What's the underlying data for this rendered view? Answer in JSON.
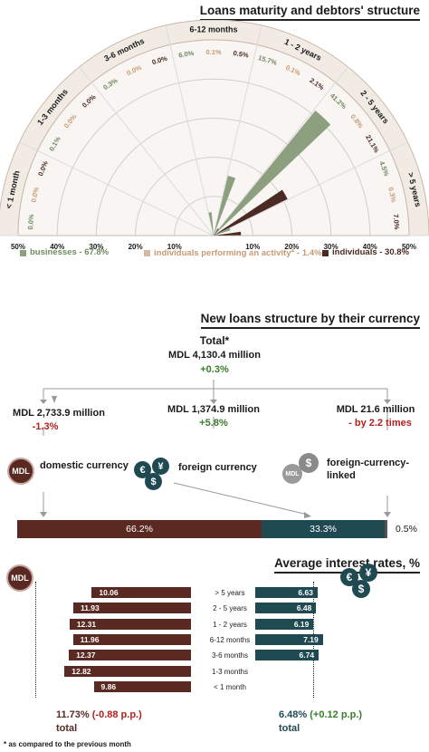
{
  "section1": {
    "title": "Loans maturity and debtors' structure",
    "legend": [
      {
        "label": "businesses - 67.8%",
        "color": "#8c9f7e"
      },
      {
        "label": "individuals performing an activity",
        "sup": "2",
        "suffix": " - 1.4%",
        "color": "#d7b79d"
      },
      {
        "label": "individuals - 30.8%",
        "color": "#4a2a22"
      }
    ]
  },
  "chart_data": [
    {
      "type": "polar-bar",
      "title": "Loans maturity and debtors' structure",
      "categories": [
        "< 1 month",
        "1-3 months",
        "3-6 months",
        "6-12 months",
        "1 - 2 years",
        "2 - 5 years",
        "> 5 years"
      ],
      "series": [
        {
          "name": "businesses",
          "values": [
            0.0,
            0.1,
            0.3,
            6.0,
            15.7,
            41.2,
            4.5
          ]
        },
        {
          "name": "individuals performing an activity",
          "values": [
            0.0,
            0.0,
            0.0,
            0.1,
            0.1,
            0.8,
            0.3
          ]
        },
        {
          "name": "individuals",
          "values": [
            0.0,
            0.0,
            0.0,
            0.5,
            2.1,
            21.1,
            7.0
          ]
        }
      ],
      "value_labels": [
        [
          "0.0%",
          "0.0%",
          "0.0%"
        ],
        [
          "0.1%",
          "0.0%",
          "0.0%"
        ],
        [
          "0.3%",
          "0.0%",
          "0.0%"
        ],
        [
          "6.0%",
          "0.1%",
          "0.5%"
        ],
        [
          "15.7%",
          "0.1%",
          "2.1%"
        ],
        [
          "41.2%",
          "0.8%",
          "21.1%"
        ],
        [
          "4.5%",
          "0.3%",
          "7.0%"
        ]
      ],
      "radial_ticks_left": [
        "50%",
        "40%",
        "30%",
        "20%",
        "10%"
      ],
      "radial_ticks_right": [
        "10%",
        "20%",
        "30%",
        "40%",
        "50%"
      ],
      "rlim": [
        0,
        50
      ]
    },
    {
      "type": "bar",
      "title": "Average interest rates, %",
      "categories": [
        "> 5 years",
        "2 - 5 years",
        "1 - 2 years",
        "6-12 months",
        "3-6 months",
        "1-3 months",
        "< 1 month"
      ],
      "series": [
        {
          "name": "MDL",
          "values": [
            10.06,
            11.93,
            12.31,
            11.96,
            12.37,
            12.82,
            9.86
          ]
        },
        {
          "name": "foreign currency",
          "values": [
            6.63,
            6.48,
            6.19,
            7.19,
            6.74,
            null,
            null
          ]
        }
      ],
      "totals": {
        "MDL": 11.73,
        "foreign currency": 6.48
      }
    },
    {
      "type": "bar",
      "title": "New loans structure by their currency",
      "categories": [
        "domestic currency",
        "foreign currency",
        "foreign-currency-linked"
      ],
      "values": [
        66.2,
        33.3,
        0.5
      ],
      "labels": [
        "66.2%",
        "33.3%",
        "0.5%"
      ],
      "colors": [
        "#5a2a22",
        "#1f4a52",
        "#555555"
      ]
    }
  ],
  "section2": {
    "title": "New loans structure by their currency",
    "total_label": "Total*",
    "total_amount": "MDL 4,130.4 million",
    "total_change": "+0.3%",
    "items": [
      {
        "amount": "MDL 2,733.9 million",
        "change": "-1.3%",
        "label": "domestic currency"
      },
      {
        "amount": "MDL 1,374.9 million",
        "change": "+5.8%",
        "label": "foreign currency"
      },
      {
        "amount": "MDL 21.6 million",
        "change": "- by 2.2 times",
        "label": "foreign-currency-linked"
      }
    ],
    "mdl_badge": "MDL",
    "euro_sign": "€",
    "yen_sign": "¥",
    "dollar_sign": "$"
  },
  "section3": {
    "title": "Average interest rates, %",
    "mdl_badge": "MDL",
    "left_total": "11.73%",
    "left_change": "(-0.88 p.p.)",
    "left_total_label": "total",
    "right_total": "6.48%",
    "right_change": "(+0.12 p.p.)",
    "right_total_label": "total"
  },
  "footnote": "* as compared to the previous month"
}
